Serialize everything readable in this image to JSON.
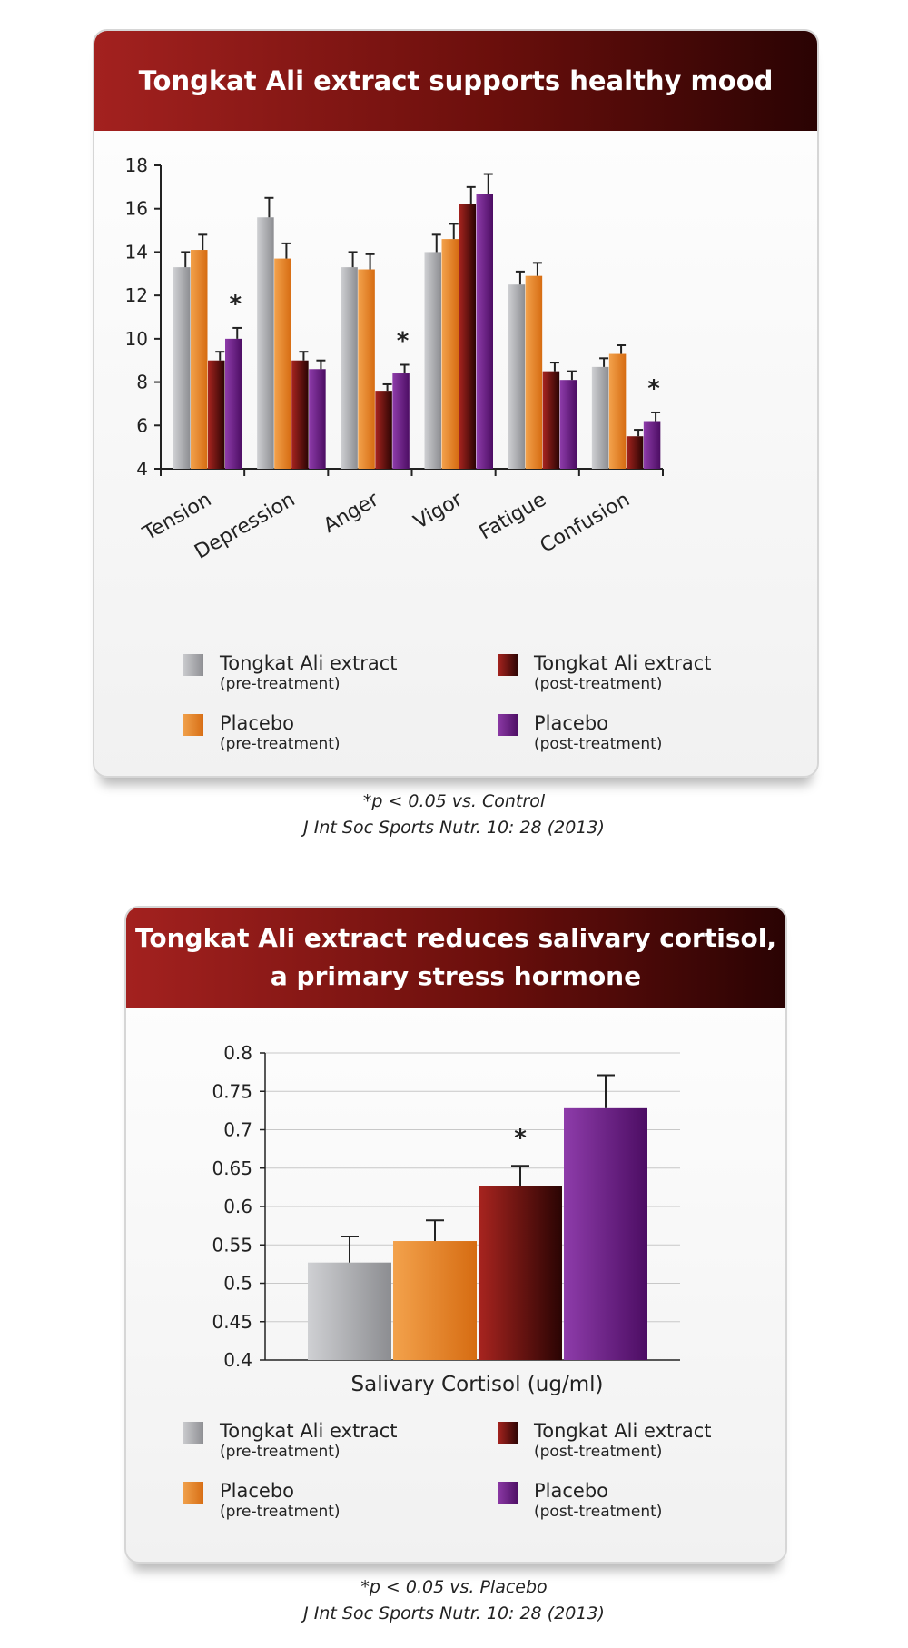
{
  "charts": [
    {
      "title": "Tongkat Ali extract supports healthy mood",
      "footnote": "*p < 0.05 vs. Control",
      "citation": "J Int Soc Sports Nutr. 10: 28 (2013)"
    },
    {
      "title_line1": "Tongkat Ali extract reduces salivary cortisol,",
      "title_line2": "a primary stress hormone",
      "footnote": "*p < 0.05 vs. Placebo",
      "citation": "J Int Soc Sports Nutr. 10: 28 (2013)"
    }
  ],
  "legend": [
    {
      "label": "Tongkat Ali extract",
      "sub": "(pre-treatment)",
      "color": "#a7a8ab"
    },
    {
      "label": "Tongkat Ali extract",
      "sub": "(post-treatment)",
      "color": "#7a1512"
    },
    {
      "label": "Placebo",
      "sub": "(pre-treatment)",
      "color": "#e5862b"
    },
    {
      "label": "Placebo",
      "sub": "(post-treatment)",
      "color": "#6a2183"
    }
  ],
  "chart_data": [
    {
      "type": "bar",
      "title": "Tongkat Ali extract supports healthy mood",
      "categories": [
        "Tension",
        "Depression",
        "Anger",
        "Vigor",
        "Fatigue",
        "Confusion"
      ],
      "series": [
        {
          "name": "Tongkat Ali extract (pre-treatment)",
          "values": [
            13.3,
            15.6,
            13.3,
            14.0,
            12.5,
            8.7
          ],
          "errors": [
            0.7,
            0.9,
            0.7,
            0.8,
            0.6,
            0.4
          ]
        },
        {
          "name": "Placebo (pre-treatment)",
          "values": [
            14.1,
            13.7,
            13.2,
            14.6,
            12.9,
            9.3
          ],
          "errors": [
            0.7,
            0.7,
            0.7,
            0.7,
            0.6,
            0.4
          ]
        },
        {
          "name": "Tongkat Ali extract (post-treatment)",
          "values": [
            9.0,
            9.0,
            7.6,
            16.2,
            8.5,
            5.5
          ],
          "errors": [
            0.4,
            0.4,
            0.3,
            0.8,
            0.4,
            0.3
          ]
        },
        {
          "name": "Placebo (post-treatment)",
          "values": [
            10.0,
            8.6,
            8.4,
            16.7,
            8.1,
            6.2
          ],
          "errors": [
            0.5,
            0.4,
            0.4,
            0.9,
            0.4,
            0.4
          ]
        }
      ],
      "significant": [
        {
          "category": 0,
          "series": 3
        },
        {
          "category": 2,
          "series": 3
        },
        {
          "category": 5,
          "series": 3
        }
      ],
      "significance_marker": "*",
      "ylim": [
        4,
        18
      ],
      "yticks": [
        "4",
        "6",
        "8",
        "10",
        "12",
        "14",
        "16",
        "18"
      ],
      "xlabel": "",
      "ylabel": "",
      "grid": false,
      "legend": "bottom"
    },
    {
      "type": "bar",
      "title": "Tongkat Ali extract reduces salivary cortisol, a primary stress hormone",
      "categories": [
        "Salivary Cortisol (ug/ml)"
      ],
      "series": [
        {
          "name": "Tongkat Ali extract (pre-treatment)",
          "values": [
            0.527
          ],
          "errors": [
            0.034
          ]
        },
        {
          "name": "Placebo (pre-treatment)",
          "values": [
            0.555
          ],
          "errors": [
            0.027
          ]
        },
        {
          "name": "Tongkat Ali extract (post-treatment)",
          "values": [
            0.627
          ],
          "errors": [
            0.026
          ]
        },
        {
          "name": "Placebo (post-treatment)",
          "values": [
            0.728
          ],
          "errors": [
            0.043
          ]
        }
      ],
      "significant": [
        {
          "category": 0,
          "series": 2
        }
      ],
      "significance_marker": "*",
      "ylim": [
        0.4,
        0.8
      ],
      "yticks": [
        "0.4",
        "0.45",
        "0.5",
        "0.55",
        "0.6",
        "0.65",
        "0.7",
        "0.75",
        "0.8"
      ],
      "xlabel": "Salivary Cortisol (ug/ml)",
      "ylabel": "",
      "grid": true,
      "legend": "bottom"
    }
  ]
}
